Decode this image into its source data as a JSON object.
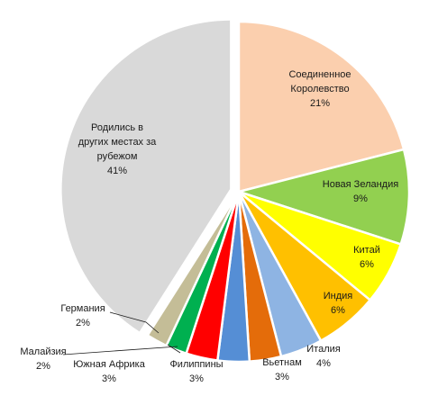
{
  "chart_data": {
    "type": "pie",
    "title": "",
    "unit": "%",
    "slices": [
      {
        "name": "Соединенное Королевство",
        "label_lines": [
          "Соединенное",
          "Королевство"
        ],
        "value_label": "21%",
        "value": 21,
        "color": "#FBCFAE"
      },
      {
        "name": "Новая Зеландия",
        "label_lines": [
          "Новая Зеландия"
        ],
        "value_label": "9%",
        "value": 9,
        "color": "#92D050"
      },
      {
        "name": "Китай",
        "label_lines": [
          "Китай"
        ],
        "value_label": "6%",
        "value": 6,
        "color": "#FFFF00"
      },
      {
        "name": "Индия",
        "label_lines": [
          "Индия"
        ],
        "value_label": "6%",
        "value": 6,
        "color": "#FFC000"
      },
      {
        "name": "Италия",
        "label_lines": [
          "Италия"
        ],
        "value_label": "4%",
        "value": 4,
        "color": "#8EB4E3"
      },
      {
        "name": "Вьетнам",
        "label_lines": [
          "Вьетнам"
        ],
        "value_label": "3%",
        "value": 3,
        "color": "#E46C0A"
      },
      {
        "name": "Филиппины",
        "label_lines": [
          "Филиппины"
        ],
        "value_label": "3%",
        "value": 3,
        "color": "#558ED5"
      },
      {
        "name": "Южная Африка",
        "label_lines": [
          "Южная Африка"
        ],
        "value_label": "3%",
        "value": 3,
        "color": "#FF0000"
      },
      {
        "name": "Малайзия",
        "label_lines": [
          "Малайзия"
        ],
        "value_label": "2%",
        "value": 2,
        "color": "#00B050"
      },
      {
        "name": "Германия",
        "label_lines": [
          "Германия"
        ],
        "value_label": "2%",
        "value": 2,
        "color": "#C4BD97"
      },
      {
        "name": "Родились в других местах за рубежом",
        "label_lines": [
          "Родились в",
          "других местах за",
          "рубежом"
        ],
        "value_label": "41%",
        "value": 41,
        "color": "#D9D9D9"
      }
    ]
  }
}
